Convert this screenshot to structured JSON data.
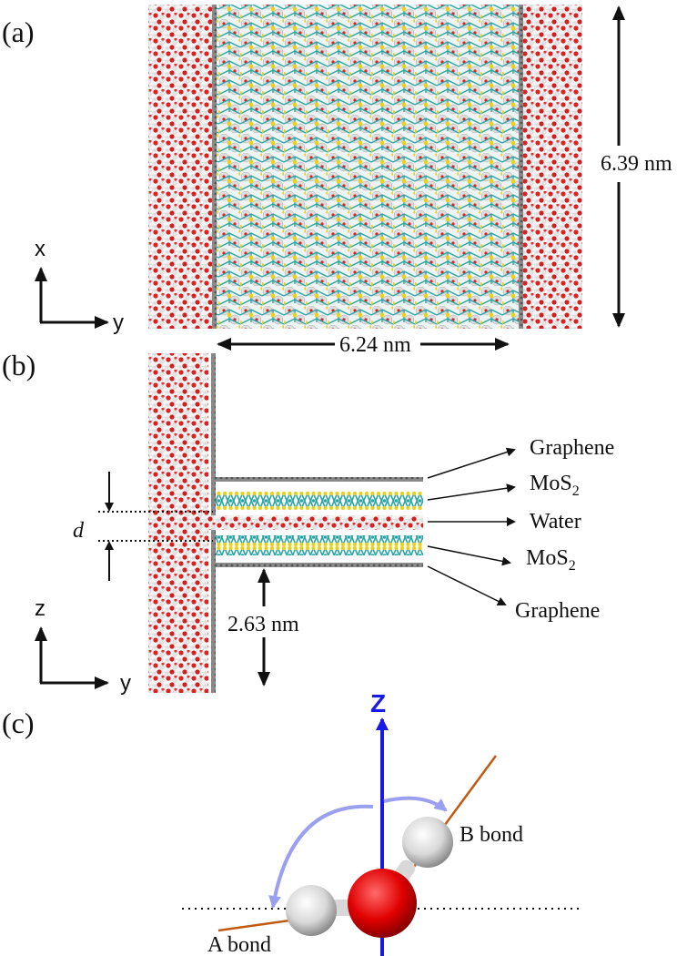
{
  "panels": {
    "a": {
      "label": "(a)",
      "height_label": "6.39 nm",
      "width_label": "6.24 nm",
      "axis_vertical": "x",
      "axis_horizontal": "y"
    },
    "b": {
      "label": "(b)",
      "gap_label": "d",
      "thickness_label": "2.63 nm",
      "axis_vertical": "z",
      "axis_horizontal": "y",
      "layers": [
        "Graphene",
        "MoS",
        "Water",
        "MoS",
        "Graphene"
      ],
      "mos_subscript": "2"
    },
    "c": {
      "label": "(c)",
      "axis_label": "Z",
      "a_bond": "A bond",
      "b_bond": "B bond"
    }
  },
  "colors": {
    "water_o": "#e02020",
    "water_h": "#f2f2f2",
    "mo": "#2aa3a3",
    "s": "#e8d21f",
    "graphene": "#707070",
    "z_axis": "#1a1ae6",
    "bond_line": "#c05a10",
    "angle_arc": "#9a9ff0"
  }
}
